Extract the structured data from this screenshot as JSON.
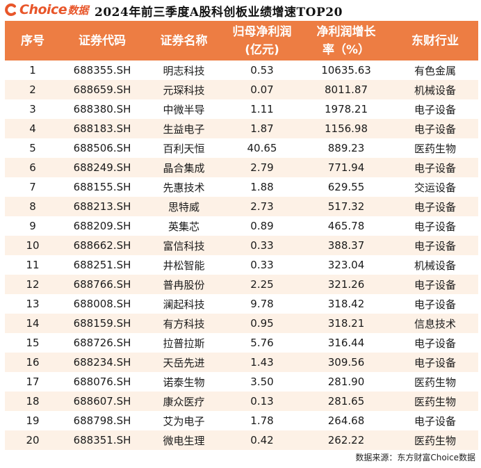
{
  "brand": {
    "logo_text": "Choice",
    "logo_cn": "数据"
  },
  "title": "2024年前三季度A股科创板业绩增速TOP20",
  "columns": [
    "序号",
    "证券代码",
    "证券名称",
    "归母净利润（亿元）",
    "净利润增长率（%）",
    "东财行业"
  ],
  "column_lines": [
    [
      "序号"
    ],
    [
      "证券代码"
    ],
    [
      "证券名称"
    ],
    [
      "归母净利润",
      "(亿元)"
    ],
    [
      "净利润增长",
      "率（%）"
    ],
    [
      "东财行业"
    ]
  ],
  "rows": [
    [
      "1",
      "688355.SH",
      "明志科技",
      "0.53",
      "10635.63",
      "有色金属"
    ],
    [
      "2",
      "688659.SH",
      "元琛科技",
      "0.07",
      "8011.87",
      "机械设备"
    ],
    [
      "3",
      "688380.SH",
      "中微半导",
      "1.11",
      "1978.21",
      "电子设备"
    ],
    [
      "4",
      "688183.SH",
      "生益电子",
      "1.87",
      "1156.98",
      "电子设备"
    ],
    [
      "5",
      "688506.SH",
      "百利天恒",
      "40.65",
      "889.23",
      "医药生物"
    ],
    [
      "6",
      "688249.SH",
      "晶合集成",
      "2.79",
      "771.94",
      "电子设备"
    ],
    [
      "7",
      "688155.SH",
      "先惠技术",
      "1.88",
      "629.55",
      "交运设备"
    ],
    [
      "8",
      "688213.SH",
      "思特威",
      "2.73",
      "517.32",
      "电子设备"
    ],
    [
      "9",
      "688209.SH",
      "英集芯",
      "0.89",
      "465.78",
      "电子设备"
    ],
    [
      "10",
      "688662.SH",
      "富信科技",
      "0.33",
      "388.37",
      "电子设备"
    ],
    [
      "11",
      "688251.SH",
      "井松智能",
      "0.33",
      "323.04",
      "机械设备"
    ],
    [
      "12",
      "688766.SH",
      "普冉股份",
      "2.25",
      "321.26",
      "电子设备"
    ],
    [
      "13",
      "688008.SH",
      "澜起科技",
      "9.78",
      "318.42",
      "电子设备"
    ],
    [
      "14",
      "688159.SH",
      "有方科技",
      "0.95",
      "318.21",
      "信息技术"
    ],
    [
      "15",
      "688726.SH",
      "拉普拉斯",
      "5.76",
      "316.44",
      "电子设备"
    ],
    [
      "16",
      "688234.SH",
      "天岳先进",
      "1.43",
      "309.56",
      "电子设备"
    ],
    [
      "17",
      "688076.SH",
      "诺泰生物",
      "3.50",
      "281.90",
      "医药生物"
    ],
    [
      "18",
      "688607.SH",
      "康众医疗",
      "0.13",
      "281.65",
      "医药生物"
    ],
    [
      "19",
      "688798.SH",
      "艾为电子",
      "1.78",
      "264.68",
      "电子设备"
    ],
    [
      "20",
      "688351.SH",
      "微电生理",
      "0.42",
      "262.22",
      "医药生物"
    ]
  ],
  "footer": "数据来源：东方财富Choice数据",
  "watermark": "东方财富Choice数据",
  "colors": {
    "header_bg": "#ed7d43",
    "stripe_bg": "#fdf1e6",
    "brand": "#e8562a"
  }
}
